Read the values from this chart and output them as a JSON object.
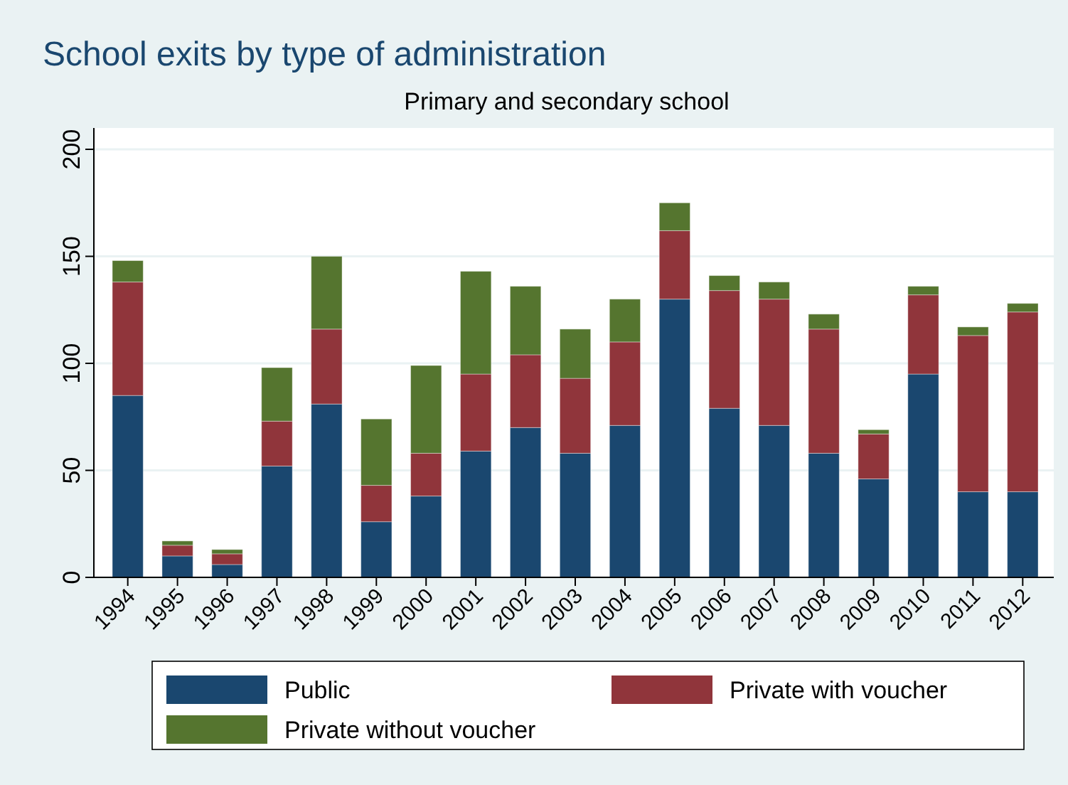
{
  "chart_data": {
    "type": "bar",
    "title": "School exits by type of administration",
    "subtitle": "Primary and secondary school",
    "stacked": true,
    "categories": [
      "1994",
      "1995",
      "1996",
      "1997",
      "1998",
      "1999",
      "2000",
      "2001",
      "2002",
      "2003",
      "2004",
      "2005",
      "2006",
      "2007",
      "2008",
      "2009",
      "2010",
      "2011",
      "2012"
    ],
    "series": [
      {
        "name": "Public",
        "color": "#1a476f",
        "values": [
          85,
          10,
          6,
          52,
          81,
          26,
          38,
          59,
          70,
          58,
          71,
          130,
          79,
          71,
          58,
          46,
          95,
          40,
          40
        ]
      },
      {
        "name": "Private with voucher",
        "color": "#90353b",
        "values": [
          53,
          5,
          5,
          21,
          35,
          17,
          20,
          36,
          34,
          35,
          39,
          32,
          55,
          59,
          58,
          21,
          37,
          73,
          84
        ]
      },
      {
        "name": "Private without voucher",
        "color": "#55752f",
        "values": [
          10,
          2,
          2,
          25,
          34,
          31,
          41,
          48,
          32,
          23,
          20,
          13,
          7,
          8,
          7,
          2,
          4,
          4,
          4
        ]
      }
    ],
    "ylim": [
      0,
      200
    ],
    "yticks": [
      0,
      50,
      100,
      150,
      200
    ],
    "grid": "y",
    "legend": "bottom"
  }
}
